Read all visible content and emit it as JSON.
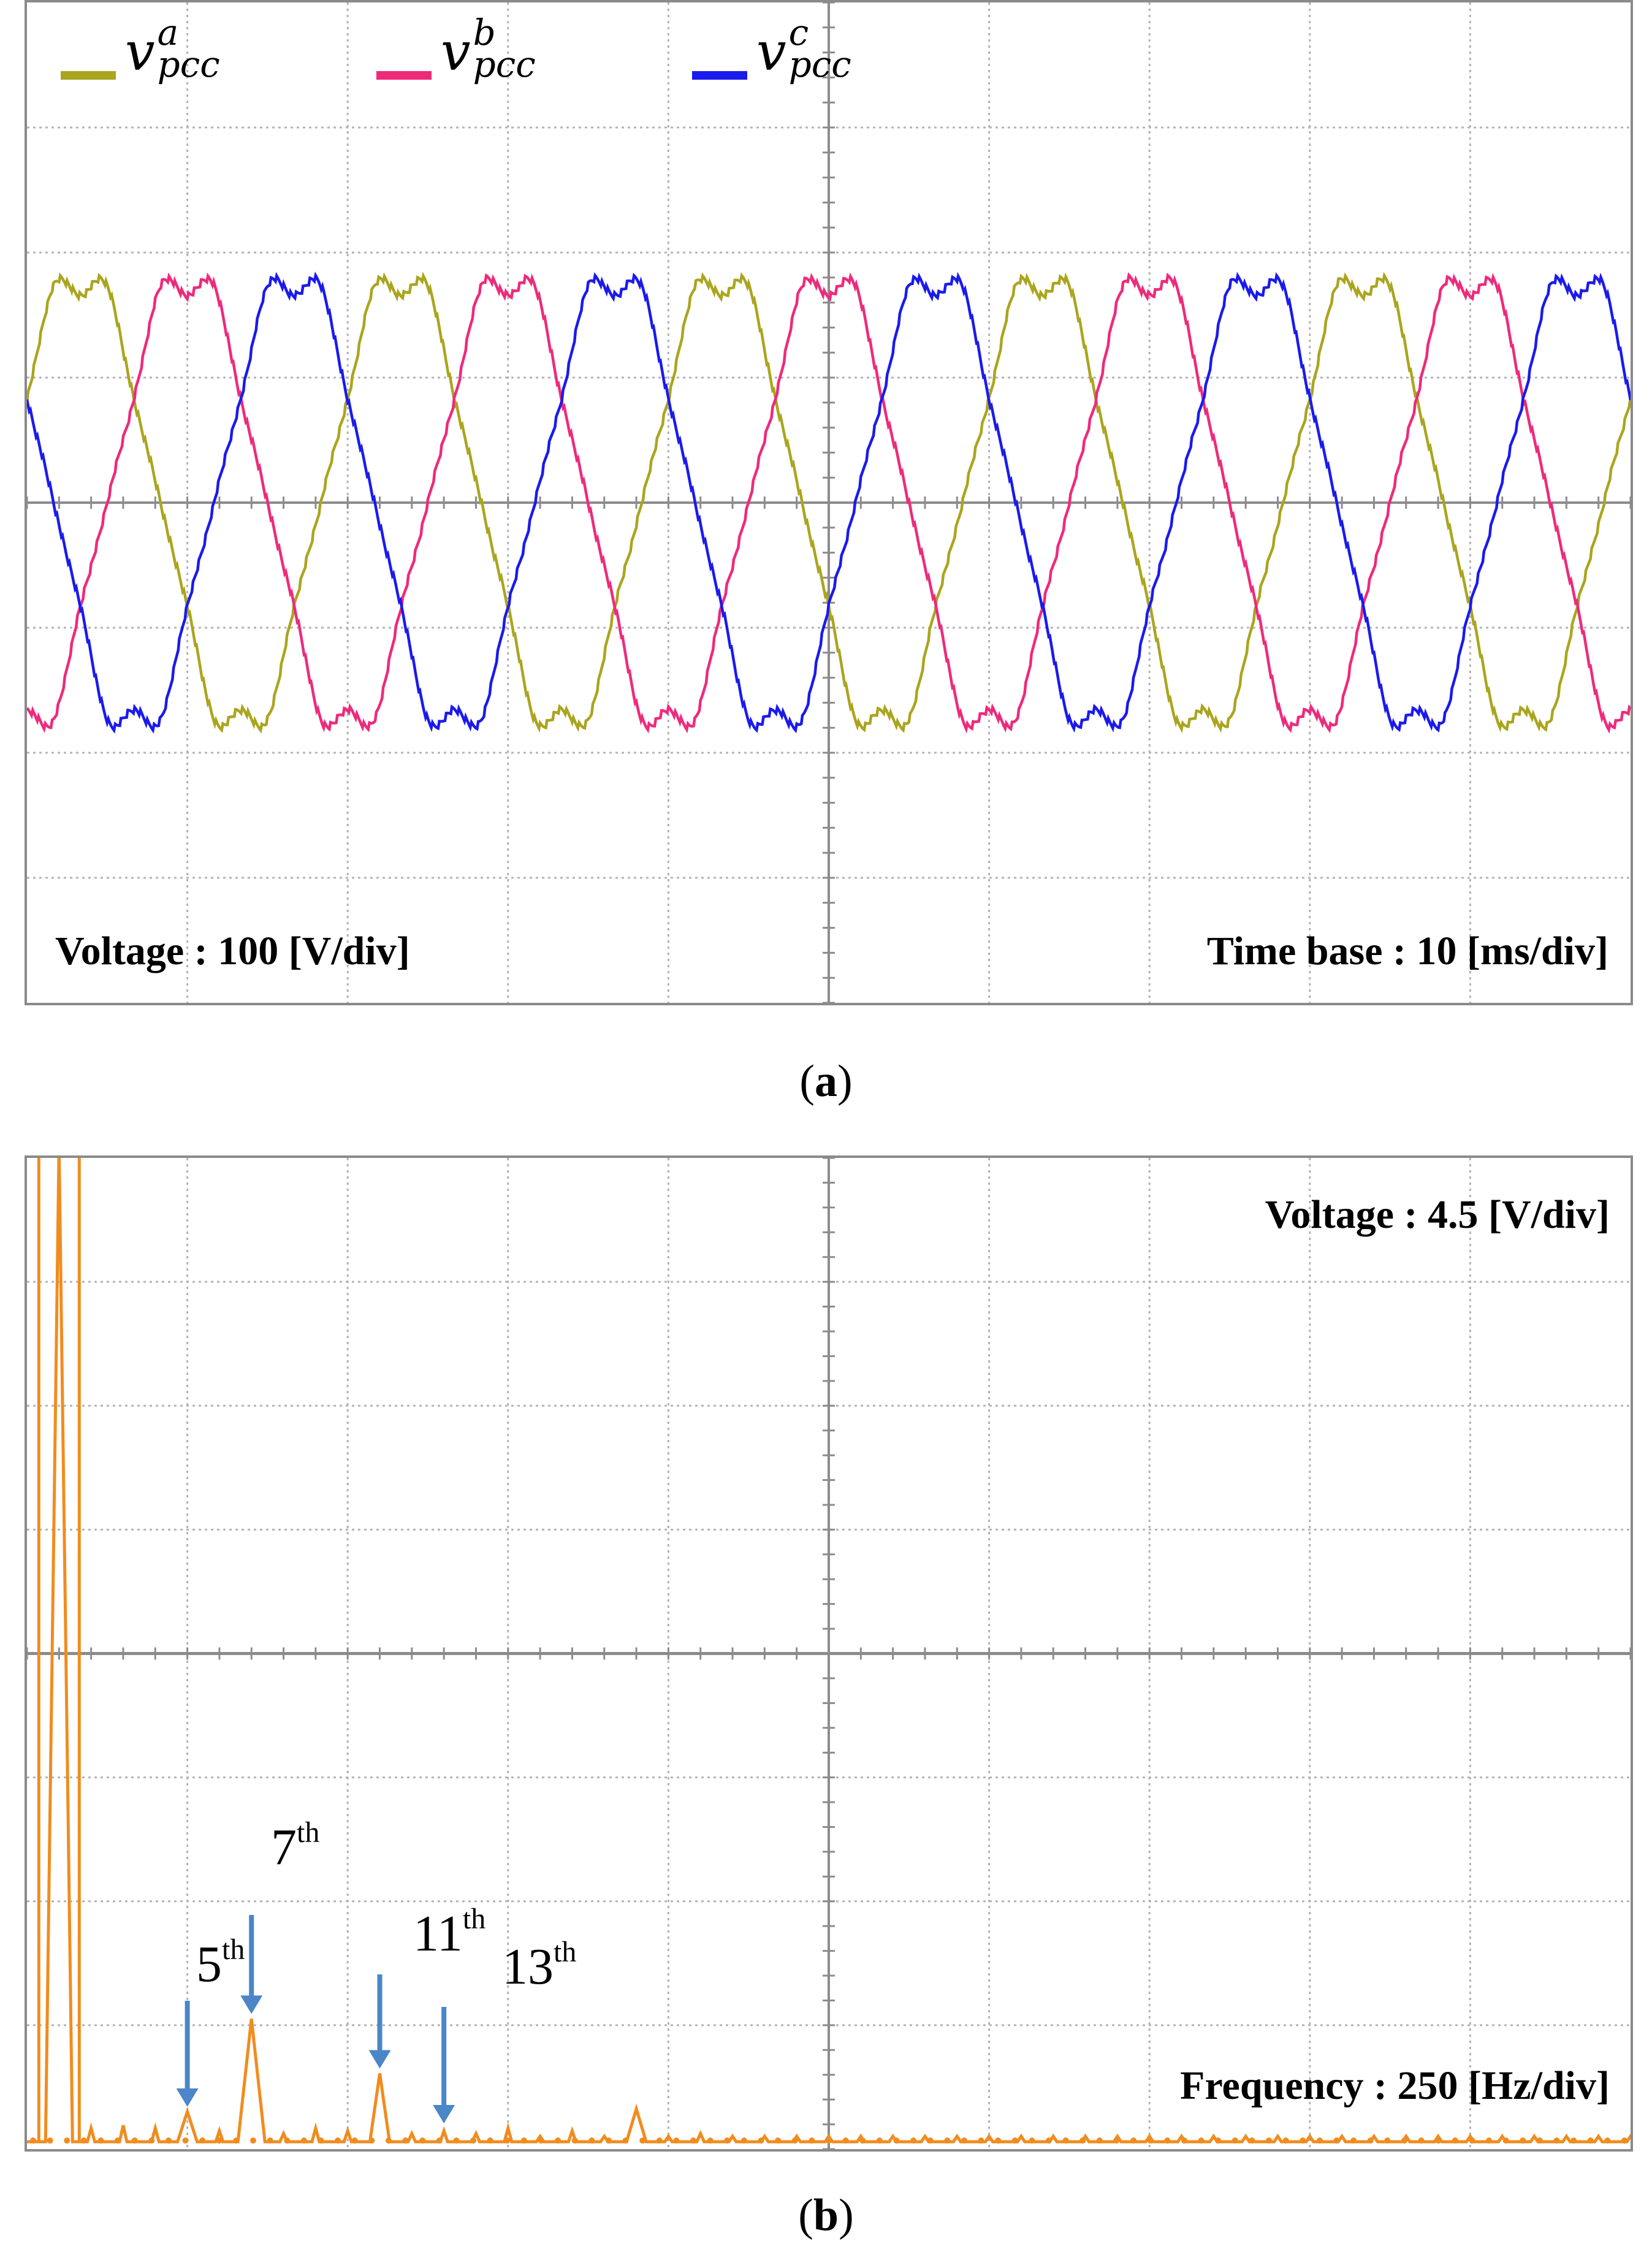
{
  "panel_a": {
    "caption_letter": "a",
    "voltage_label": "Voltage : 100 [V/div]",
    "time_label": "Time base : 10 [ms/div]",
    "legend": [
      {
        "base": "v",
        "sup": "a",
        "sub": "pcc",
        "color": "#aaa51e"
      },
      {
        "base": "v",
        "sup": "b",
        "sub": "pcc",
        "color": "#ee2a7b"
      },
      {
        "base": "v",
        "sup": "c",
        "sub": "pcc",
        "color": "#1a1aee"
      }
    ]
  },
  "panel_b": {
    "caption_letter": "b",
    "voltage_label": "Voltage : 4.5 [V/div]",
    "frequency_label": "Frequency : 250 [Hz/div]",
    "harmonics": [
      {
        "num": "5",
        "suffix": "th"
      },
      {
        "num": "7",
        "suffix": "th"
      },
      {
        "num": "11",
        "suffix": "th"
      },
      {
        "num": "13",
        "suffix": "th"
      }
    ]
  },
  "colors": {
    "spectrum": "#f08c1e",
    "arrow": "#4a86c8",
    "grid": "#b4b4b4",
    "axis": "#8c8c8c"
  },
  "chart_data": [
    {
      "type": "line",
      "title": "",
      "xlabel": "Time base : 10 [ms/div]",
      "ylabel": "Voltage : 100 [V/div]",
      "x_unit": "ms",
      "y_unit": "V",
      "xlim": [
        0,
        100
      ],
      "ylim": [
        -400,
        400
      ],
      "grid": true,
      "legend_position": "top-left",
      "fundamental_hz": 50,
      "series": [
        {
          "name": "v_pcc^a",
          "amplitude": 183,
          "phase_deg": 30
        },
        {
          "name": "v_pcc^b",
          "amplitude": 183,
          "phase_deg": -90
        },
        {
          "name": "v_pcc^c",
          "amplitude": 183,
          "phase_deg": 150
        }
      ]
    },
    {
      "type": "line",
      "title": "",
      "xlabel": "Frequency : 250 [Hz/div]",
      "ylabel": "Voltage : 4.5 [V/div]",
      "x_unit": "Hz",
      "y_unit": "V",
      "xlim": [
        0,
        2500
      ],
      "ylim": [
        0,
        36
      ],
      "grid": true,
      "x": [
        0,
        50,
        100,
        150,
        200,
        250,
        300,
        350,
        400,
        450,
        500,
        550,
        600,
        650,
        700,
        750,
        800,
        850,
        900,
        950,
        1000,
        1050,
        1100,
        1150,
        1200,
        1250,
        1300,
        1350,
        1400,
        1450,
        1500,
        1550,
        1600,
        1650,
        1700,
        1750,
        1800,
        1850,
        1900,
        1950,
        2000,
        2050,
        2100,
        2150,
        2200,
        2250,
        2300,
        2350,
        2400,
        2450,
        2500
      ],
      "values": [
        0,
        38,
        0.5,
        0.6,
        0.5,
        1.1,
        0.4,
        4.5,
        0.3,
        0.5,
        0.4,
        2.5,
        0.3,
        0.4,
        0.3,
        0.5,
        0.2,
        0.4,
        0.2,
        1.2,
        0.2,
        0.3,
        0.2,
        0.2,
        0.2,
        0.2,
        0.2,
        0.2,
        0.2,
        0.2,
        0.2,
        0.2,
        0.2,
        0.2,
        0.2,
        0.2,
        0.2,
        0.2,
        0.2,
        0.2,
        0.2,
        0.2,
        0.2,
        0.2,
        0.2,
        0.2,
        0.2,
        0.2,
        0.2,
        0.2,
        0.2
      ],
      "annotations": [
        "5th",
        "7th",
        "11th",
        "13th"
      ]
    }
  ]
}
